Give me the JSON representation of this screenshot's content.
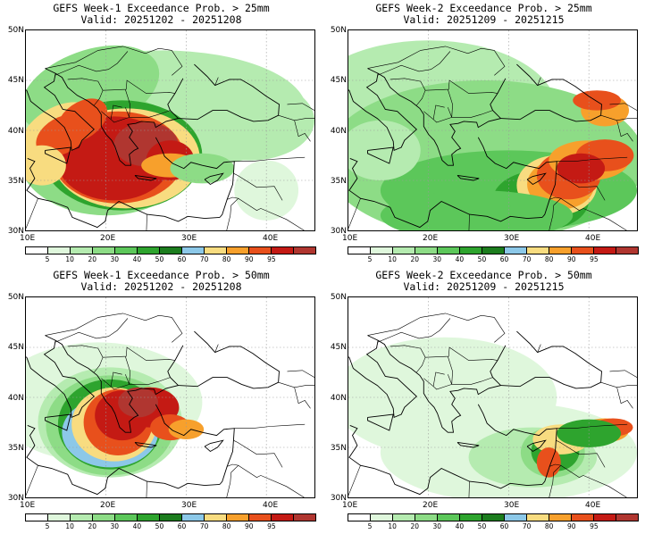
{
  "panels": [
    {
      "line1": "GEFS Week-1 Exceedance Prob. > 25mm",
      "line2": "Valid: 20251202 - 20251208"
    },
    {
      "line1": "GEFS Week-2 Exceedance Prob. > 25mm",
      "line2": "Valid: 20251209 - 20251215"
    },
    {
      "line1": "GEFS Week-1 Exceedance Prob. > 50mm",
      "line2": "Valid: 20251202 - 20251208"
    },
    {
      "line1": "GEFS Week-2 Exceedance Prob. > 50mm",
      "line2": "Valid: 20251209 - 20251215"
    }
  ],
  "lat_labels": [
    "50N",
    "45N",
    "40N",
    "35N",
    "30N"
  ],
  "lon_labels": [
    "10E",
    "20E",
    "30E",
    "40E"
  ],
  "colorbar": {
    "labels": [
      "5",
      "10",
      "20",
      "30",
      "40",
      "50",
      "60",
      "70",
      "80",
      "90",
      "95"
    ],
    "colors": [
      "#ffffff",
      "#dff7dc",
      "#b5ebb0",
      "#8ddc86",
      "#5cc75a",
      "#2ea42e",
      "#1c7d1e",
      "#8cc8e8",
      "#f8dc80",
      "#f7a02c",
      "#e8501c",
      "#c41a14",
      "#b03630"
    ]
  },
  "background_color": "#ffffff"
}
